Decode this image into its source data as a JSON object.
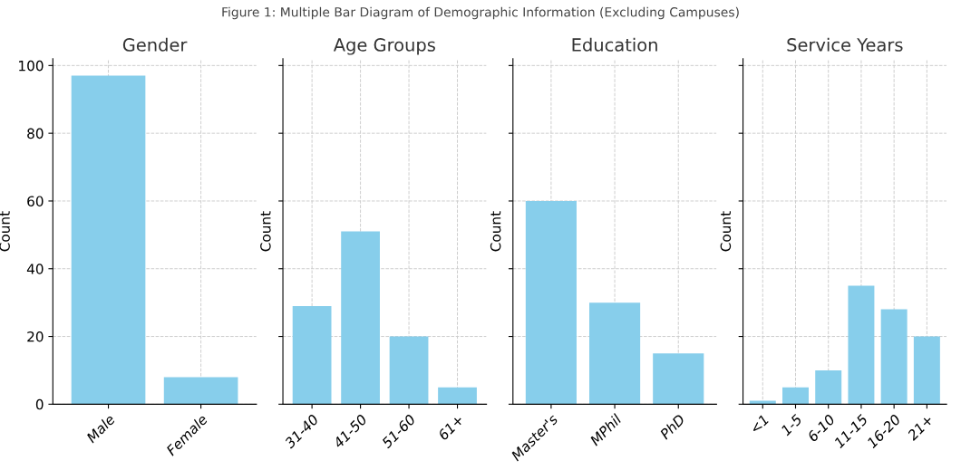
{
  "chart_data": [
    {
      "type": "bar",
      "title": "Gender",
      "ylabel": "Count",
      "categories": [
        "Male",
        "Female"
      ],
      "values": [
        97,
        8
      ],
      "color": "#87ceeb",
      "ylim": [
        0,
        102
      ],
      "yticks": [
        0,
        20,
        40,
        60,
        80,
        100
      ],
      "grid": true,
      "line_style": "dashed",
      "annotations": [
        "Figure 1: Multiple Bar Diagram of Demographic Information (Excluding Campuses)"
      ]
    },
    {
      "type": "bar",
      "title": "Age Groups",
      "ylabel": "Count",
      "categories": [
        "31-40",
        "41-50",
        "51-60",
        "61+"
      ],
      "values": [
        29,
        51,
        20,
        5
      ],
      "color": "#87ceeb",
      "ylim": [
        0,
        102
      ],
      "yticks": [
        {
          "value": 0,
          "label": null
        },
        {
          "value": 20,
          "label": null
        },
        {
          "value": 40,
          "label": null
        },
        {
          "value": 60,
          "label": null
        },
        {
          "value": 80,
          "label": null
        },
        {
          "value": 100,
          "label": null
        }
      ],
      "grid": true,
      "tick_labels": "x"
    },
    {
      "type": "bar",
      "title": "Education",
      "ylabel": "Count",
      "categories": [
        "Master's",
        "MPhil",
        "PhD"
      ],
      "values": [
        60,
        30,
        15
      ],
      "color": "#87ceeb",
      "ylim": [
        0,
        102
      ],
      "yticks": [
        {
          "value": 0,
          "label": null
        },
        {
          "value": 20,
          "label": null
        },
        {
          "value": 40,
          "label": null
        },
        {
          "value": 60,
          "label": null
        },
        {
          "value": 80,
          "label": null
        },
        {
          "value": 100,
          "label": null
        }
      ],
      "grid": true,
      "tick_labels": "x"
    },
    {
      "type": "bar",
      "title": "Service Years",
      "ylabel": "Count",
      "categories": [
        "<1",
        "1-5",
        "6-10",
        "11-15",
        "16-20",
        "21+"
      ],
      "values": [
        1,
        5,
        10,
        35,
        28,
        20
      ],
      "color": "#87ceeb",
      "ylim": [
        0,
        102
      ],
      "yticks": [
        {
          "value": 0,
          "label": null
        },
        {
          "value": 20,
          "label": null
        },
        {
          "value": 40,
          "label": null
        },
        {
          "value": 60,
          "label": null
        },
        {
          "value": 80,
          "label": null
        },
        {
          "value": 100,
          "label": null
        }
      ],
      "grid": true,
      "tick_labels": "x"
    }
  ]
}
